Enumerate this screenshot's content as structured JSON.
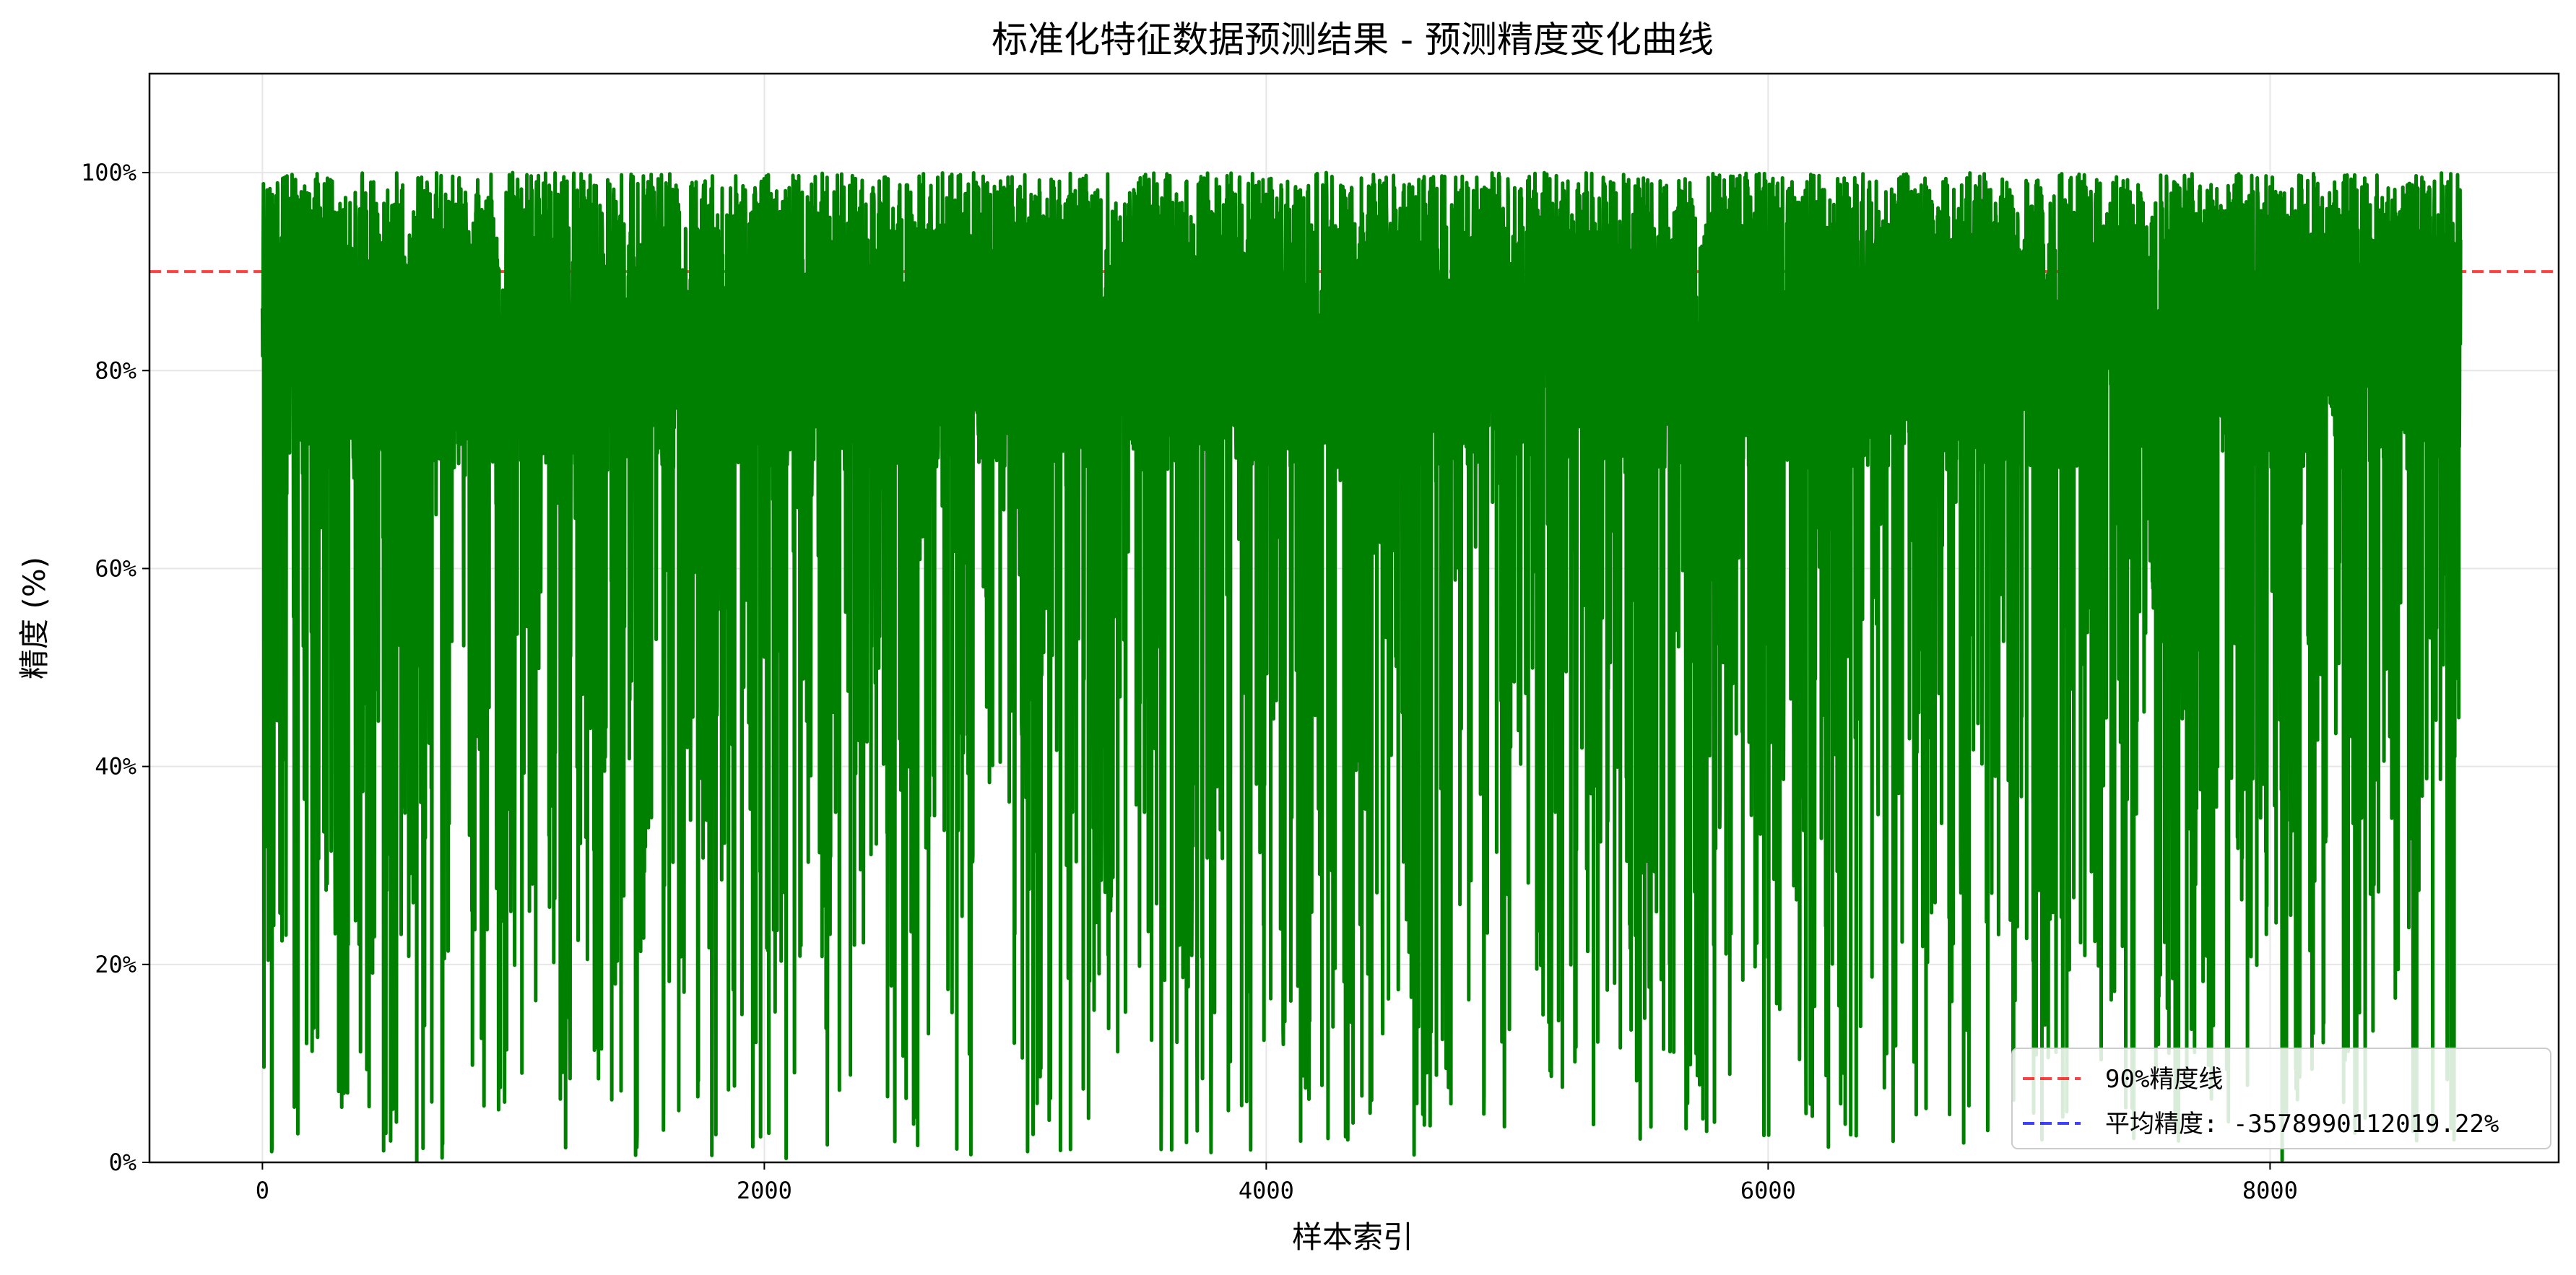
{
  "chart_data": {
    "type": "line",
    "title": "标准化特征数据预测结果 - 预测精度变化曲线",
    "xlabel": "样本索引",
    "ylabel": "精度 (%)",
    "xlim": [
      -450,
      9150
    ],
    "ylim": [
      0,
      110
    ],
    "x_ticks": [
      0,
      2000,
      4000,
      6000,
      8000
    ],
    "x_tick_labels": [
      "0",
      "2000",
      "4000",
      "6000",
      "8000"
    ],
    "y_ticks": [
      0,
      20,
      40,
      60,
      80,
      100
    ],
    "y_tick_labels": [
      "0%",
      "20%",
      "40%",
      "60%",
      "80%",
      "100%"
    ],
    "grid": true,
    "legend_position": "lower-right",
    "series": [
      {
        "color": "#008000",
        "style": "solid",
        "n_points": 8760,
        "approx_range": [
          0,
          100
        ],
        "x_range": [
          0,
          8759
        ]
      }
    ],
    "reference_lines": [
      {
        "name": "90%精度线",
        "y": 90,
        "color": "#ff0000",
        "style": "dashed"
      },
      {
        "name": "平均精度: -3578990112019.22%",
        "y": -3578990112019.22,
        "color": "#0000ff",
        "style": "dashed"
      }
    ]
  }
}
